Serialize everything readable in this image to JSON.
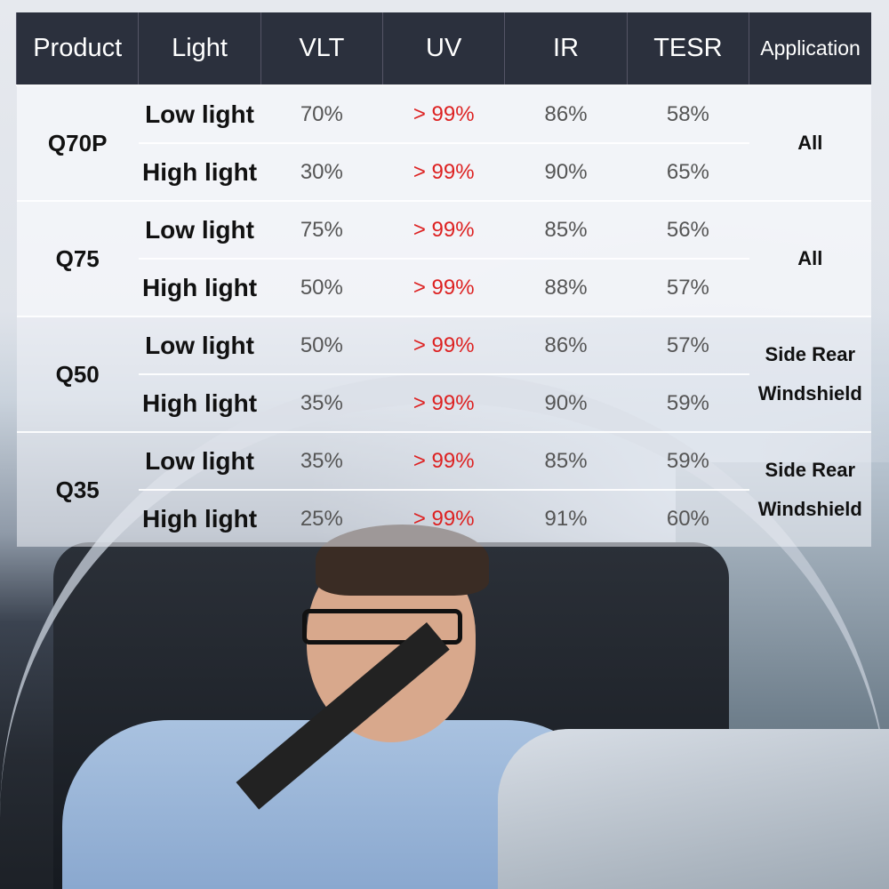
{
  "table": {
    "headers": [
      "Product",
      "Light",
      "VLT",
      "UV",
      "IR",
      "TESR",
      "Application"
    ],
    "groups": [
      {
        "product": "Q70P",
        "application": "All",
        "rows": [
          {
            "light": "Low light",
            "vlt": "70%",
            "uv": "> 99%",
            "ir": "86%",
            "tesr": "58%"
          },
          {
            "light": "High light",
            "vlt": "30%",
            "uv": "> 99%",
            "ir": "90%",
            "tesr": "65%"
          }
        ]
      },
      {
        "product": "Q75",
        "application": "All",
        "rows": [
          {
            "light": "Low light",
            "vlt": "75%",
            "uv": "> 99%",
            "ir": "85%",
            "tesr": "56%"
          },
          {
            "light": "High light",
            "vlt": "50%",
            "uv": "> 99%",
            "ir": "88%",
            "tesr": "57%"
          }
        ]
      },
      {
        "product": "Q50",
        "application_lines": [
          "Side Rear",
          "Windshield"
        ],
        "rows": [
          {
            "light": "Low light",
            "vlt": "50%",
            "uv": "> 99%",
            "ir": "86%",
            "tesr": "57%"
          },
          {
            "light": "High light",
            "vlt": "35%",
            "uv": "> 99%",
            "ir": "90%",
            "tesr": "59%"
          }
        ]
      },
      {
        "product": "Q35",
        "application_lines": [
          "Side Rear",
          "Windshield"
        ],
        "rows": [
          {
            "light": "Low light",
            "vlt": "35%",
            "uv": "> 99%",
            "ir": "85%",
            "tesr": "59%"
          },
          {
            "light": "High light",
            "vlt": "25%",
            "uv": "> 99%",
            "ir": "91%",
            "tesr": "60%"
          }
        ]
      }
    ]
  },
  "colors": {
    "header_bg": "#2b303d",
    "uv_text": "#dd2222"
  }
}
